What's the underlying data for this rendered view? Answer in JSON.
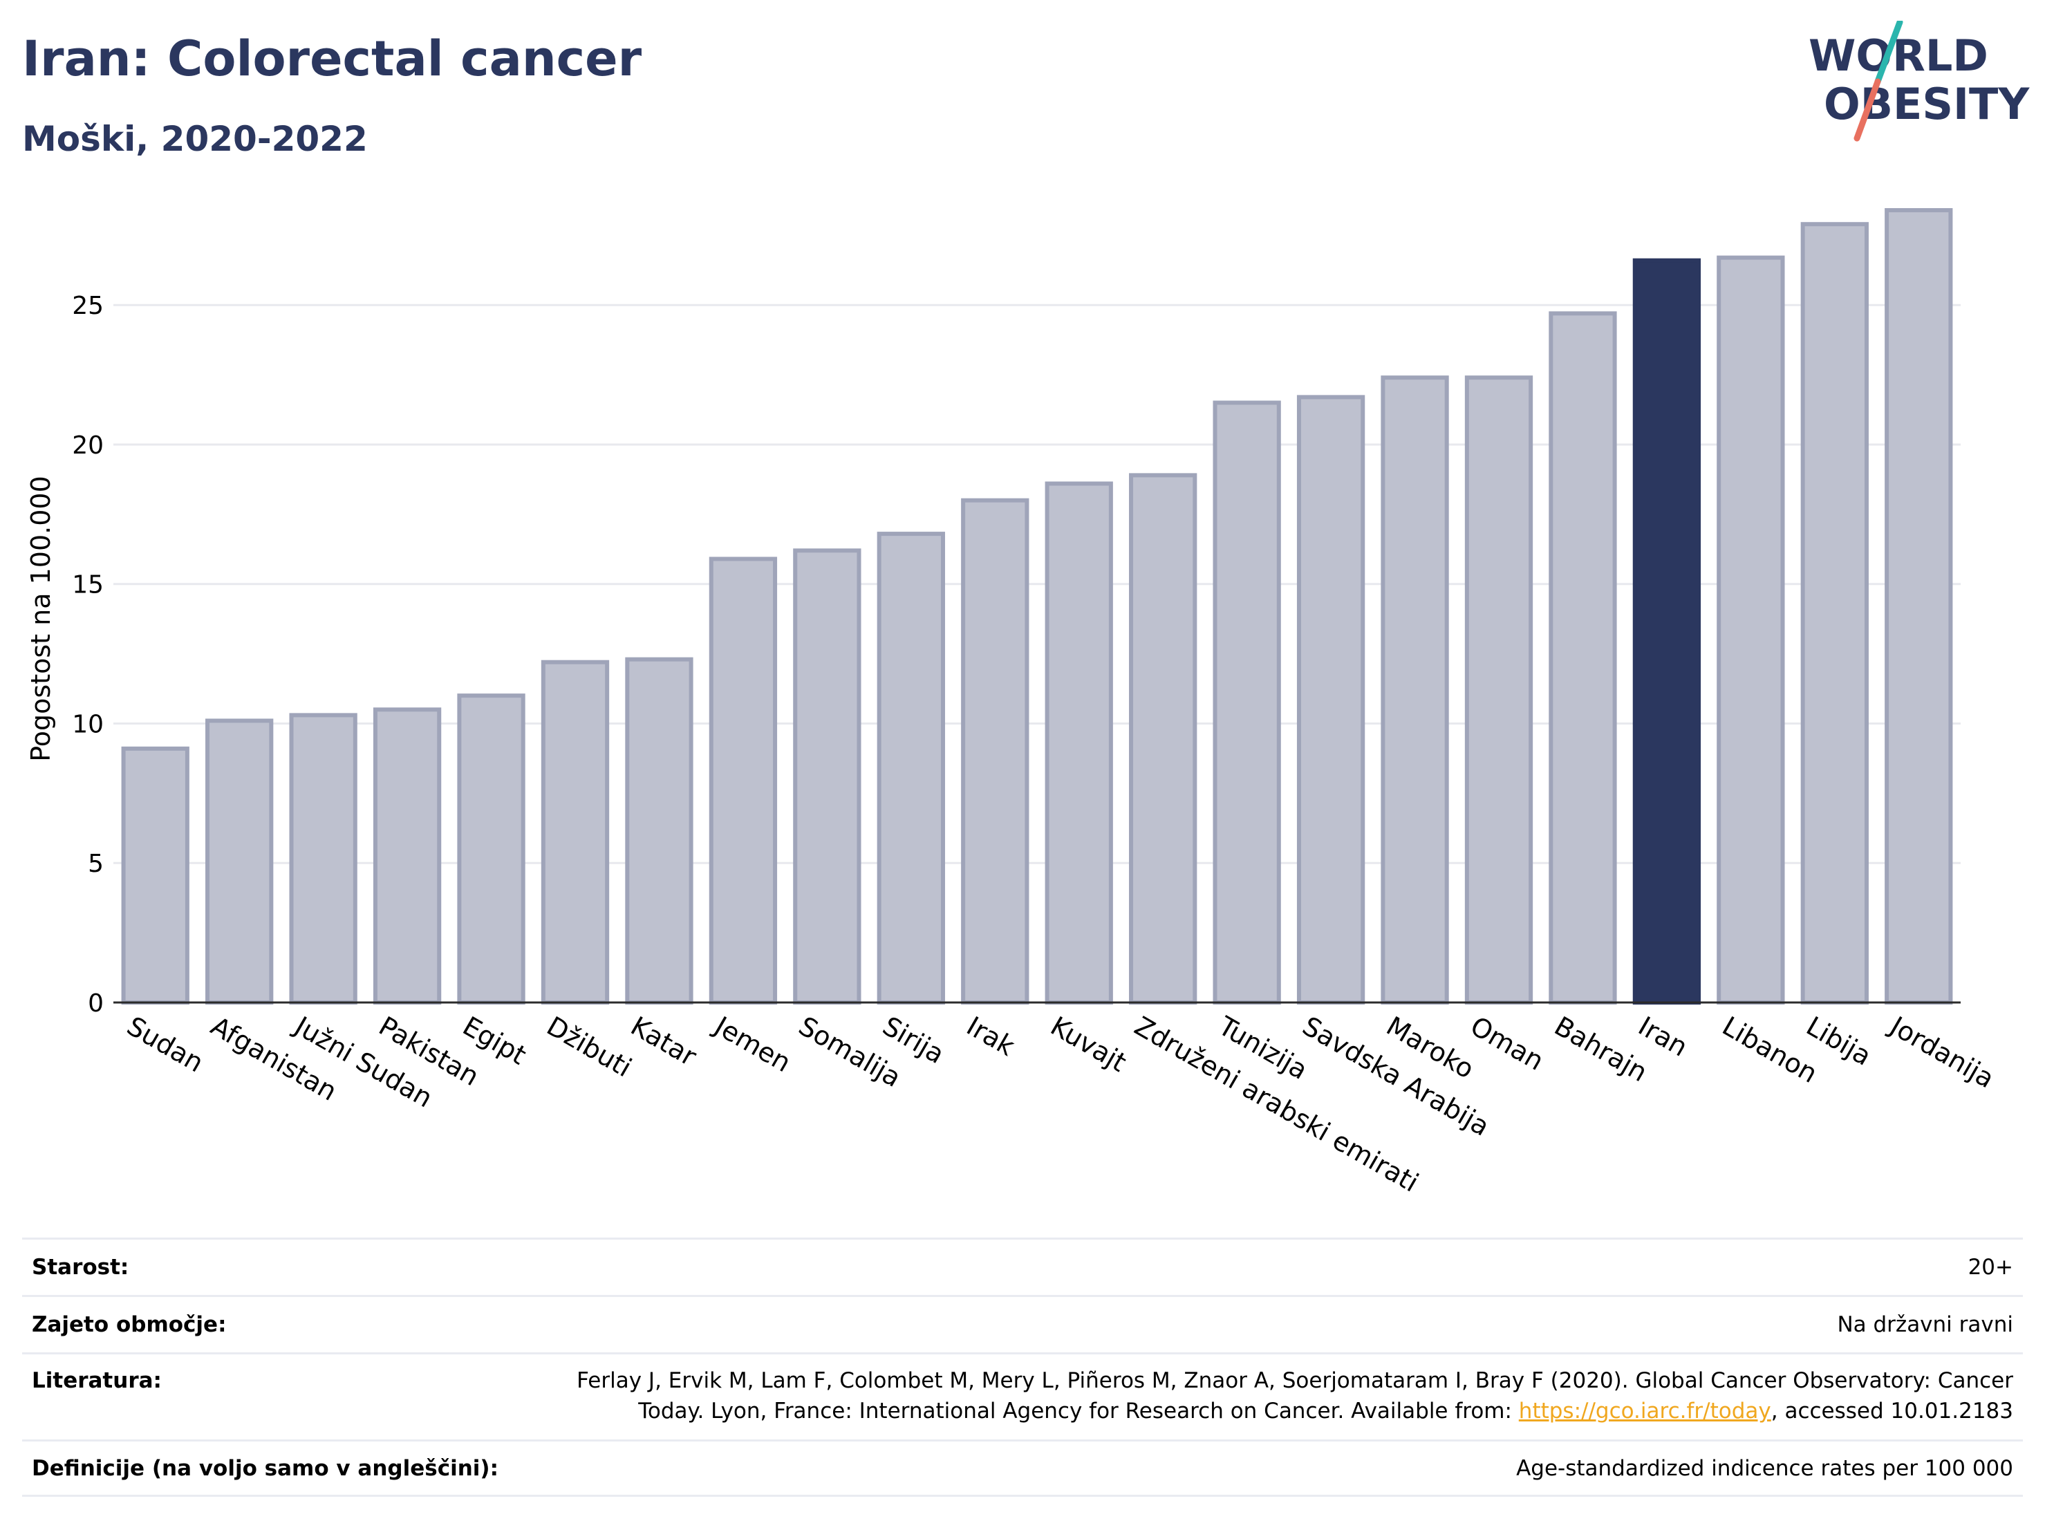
{
  "header": {
    "title": "Iran: Colorectal cancer",
    "subtitle": "Moški, 2020-2022"
  },
  "logo": {
    "line1": "WORLD",
    "line2": "OBESITY",
    "text_color": "#2b375f",
    "accent_teal": "#2bb5ad",
    "accent_coral": "#e8705f"
  },
  "chart_data": {
    "type": "bar",
    "ylabel": "Pogostost na 100.000",
    "ylim": [
      0,
      28.5
    ],
    "yticks": [
      0,
      5,
      10,
      15,
      20,
      25
    ],
    "grid": true,
    "highlight": "Iran",
    "colors": {
      "bar": "#bec1cf",
      "bar_border": "#9fa4b9",
      "highlight": "#2b375f"
    },
    "categories": [
      "Sudan",
      "Afganistan",
      "Južni Sudan",
      "Pakistan",
      "Egipt",
      "Džibuti",
      "Katar",
      "Jemen",
      "Somalija",
      "Sirija",
      "Irak",
      "Kuvajt",
      "Združeni arabski emirati",
      "Tunizija",
      "Savdska Arabija",
      "Maroko",
      "Oman",
      "Bahrajn",
      "Iran",
      "Libanon",
      "Libija",
      "Jordanija"
    ],
    "values": [
      9.1,
      10.1,
      10.3,
      10.5,
      11.0,
      12.2,
      12.3,
      15.9,
      16.2,
      16.8,
      18.0,
      18.6,
      18.9,
      21.5,
      21.7,
      22.4,
      22.4,
      24.7,
      26.6,
      26.7,
      27.9,
      28.4
    ]
  },
  "info": {
    "age_label": "Starost:",
    "age_value": "20+",
    "coverage_label": "Zajeto območje:",
    "coverage_value": "Na državni ravni",
    "lit_label": "Literatura:",
    "lit_line1": "Ferlay J, Ervik M, Lam F, Colombet M, Mery L, Piñeros M, Znaor A, Soerjomataram I, Bray F (2020). Global Cancer Observatory: Cancer",
    "lit_line2_pre": "Today. Lyon, France: International Agency for Research on Cancer. Available from: ",
    "lit_link": "https://gco.iarc.fr/today",
    "lit_line2_post": ", accessed 10.01.2183",
    "def_label": "Definicije (na voljo samo v angleščini):",
    "def_value": "Age-standardized indicence rates per 100 000"
  }
}
